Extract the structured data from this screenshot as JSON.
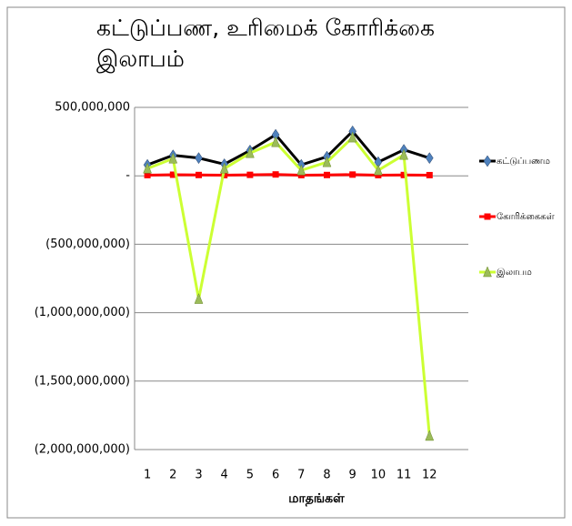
{
  "chart_data": {
    "type": "line",
    "title": "கட்டுப்பண, உரிமைக் கோரிக்கை இலாபம்",
    "x_label": "மாதங்கள்",
    "categories": [
      "1",
      "2",
      "3",
      "4",
      "5",
      "6",
      "7",
      "8",
      "9",
      "10",
      "11",
      "12"
    ],
    "series": [
      {
        "name": "கட்டுப்பணம",
        "color": "#000000",
        "marker": "diamond",
        "marker_color": "#4f81bd",
        "values": [
          80000000,
          150000000,
          130000000,
          85000000,
          185000000,
          300000000,
          80000000,
          140000000,
          325000000,
          100000000,
          190000000,
          130000000
        ]
      },
      {
        "name": "கோரிக்கைகள்",
        "color": "#ff0000",
        "marker": "square",
        "marker_color": "#ff0000",
        "values": [
          5000000,
          8000000,
          6000000,
          5000000,
          7000000,
          10000000,
          5000000,
          6000000,
          9000000,
          5000000,
          6000000,
          5000000
        ]
      },
      {
        "name": "இலாபம",
        "color": "#ccff33",
        "marker": "triangle",
        "marker_color": "#9bbb59",
        "values": [
          53000000,
          126000000,
          -900000000,
          53000000,
          166000000,
          246000000,
          40000000,
          100000000,
          280000000,
          40000000,
          153000000,
          -1900000000
        ]
      }
    ],
    "ylim": [
      -2000000000,
      500000000
    ],
    "yticks": [
      {
        "value": 500000000,
        "label": "500,000,000"
      },
      {
        "value": 0,
        "label": "-"
      },
      {
        "value": -500000000,
        "label": "(500,000,000)"
      },
      {
        "value": -1000000000,
        "label": "(1,000,000,000)"
      },
      {
        "value": -1500000000,
        "label": "(1,500,000,000)"
      },
      {
        "value": -2000000000,
        "label": "(2,000,000,000)"
      }
    ],
    "grid": true,
    "legend": "right"
  }
}
